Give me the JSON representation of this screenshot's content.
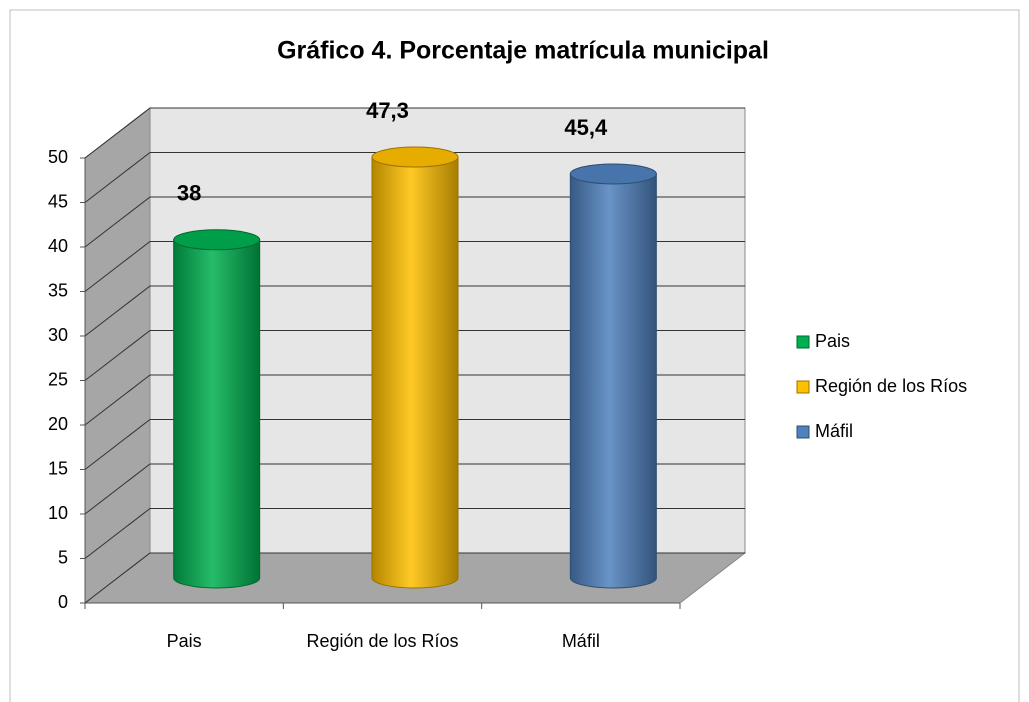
{
  "chart_data": {
    "type": "bar3d",
    "title": "Gráfico 4. Porcentaje matrícula municipal",
    "categories": [
      "Pais",
      "Región de los Ríos",
      "Máfil"
    ],
    "series": [
      {
        "name": "Pais",
        "color": "#00b050"
      },
      {
        "name": "Región de los Ríos",
        "color": "#ffc000"
      },
      {
        "name": "Máfil",
        "color": "#4f81bd"
      }
    ],
    "values": [
      38,
      47.3,
      45.4
    ],
    "value_labels": [
      "38",
      "47,3",
      "45,4"
    ],
    "ylim": [
      0,
      50
    ],
    "yticks": [
      0,
      5,
      10,
      15,
      20,
      25,
      30,
      35,
      40,
      45,
      50
    ],
    "grid": true,
    "legend": "right"
  }
}
